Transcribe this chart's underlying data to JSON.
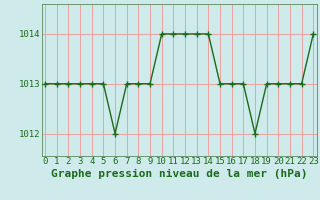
{
  "x": [
    0,
    1,
    2,
    3,
    4,
    5,
    6,
    7,
    8,
    9,
    10,
    11,
    12,
    13,
    14,
    15,
    16,
    17,
    18,
    19,
    20,
    21,
    22,
    23
  ],
  "y": [
    1013,
    1013,
    1013,
    1013,
    1013,
    1013,
    1012,
    1013,
    1013,
    1013,
    1014,
    1014,
    1014,
    1014,
    1014,
    1013,
    1013,
    1013,
    1012,
    1013,
    1013,
    1013,
    1013,
    1014
  ],
  "line_color": "#1a6b1a",
  "marker": "+",
  "marker_size": 4,
  "marker_linewidth": 1.0,
  "bg_color": "#ceeaea",
  "grid_color": "#e8a0a0",
  "title": "Graphe pression niveau de la mer (hPa)",
  "xlabel_ticks": [
    0,
    1,
    2,
    3,
    4,
    5,
    6,
    7,
    8,
    9,
    10,
    11,
    12,
    13,
    14,
    15,
    16,
    17,
    18,
    19,
    20,
    21,
    22,
    23
  ],
  "yticks": [
    1012,
    1013,
    1014
  ],
  "ylim": [
    1011.55,
    1014.6
  ],
  "xlim": [
    -0.3,
    23.3
  ],
  "title_fontsize": 8,
  "tick_fontsize": 6.5,
  "title_color": "#1a6b1a",
  "tick_color": "#1a6b1a",
  "line_width": 1.0,
  "spine_color": "#5a8a5a"
}
